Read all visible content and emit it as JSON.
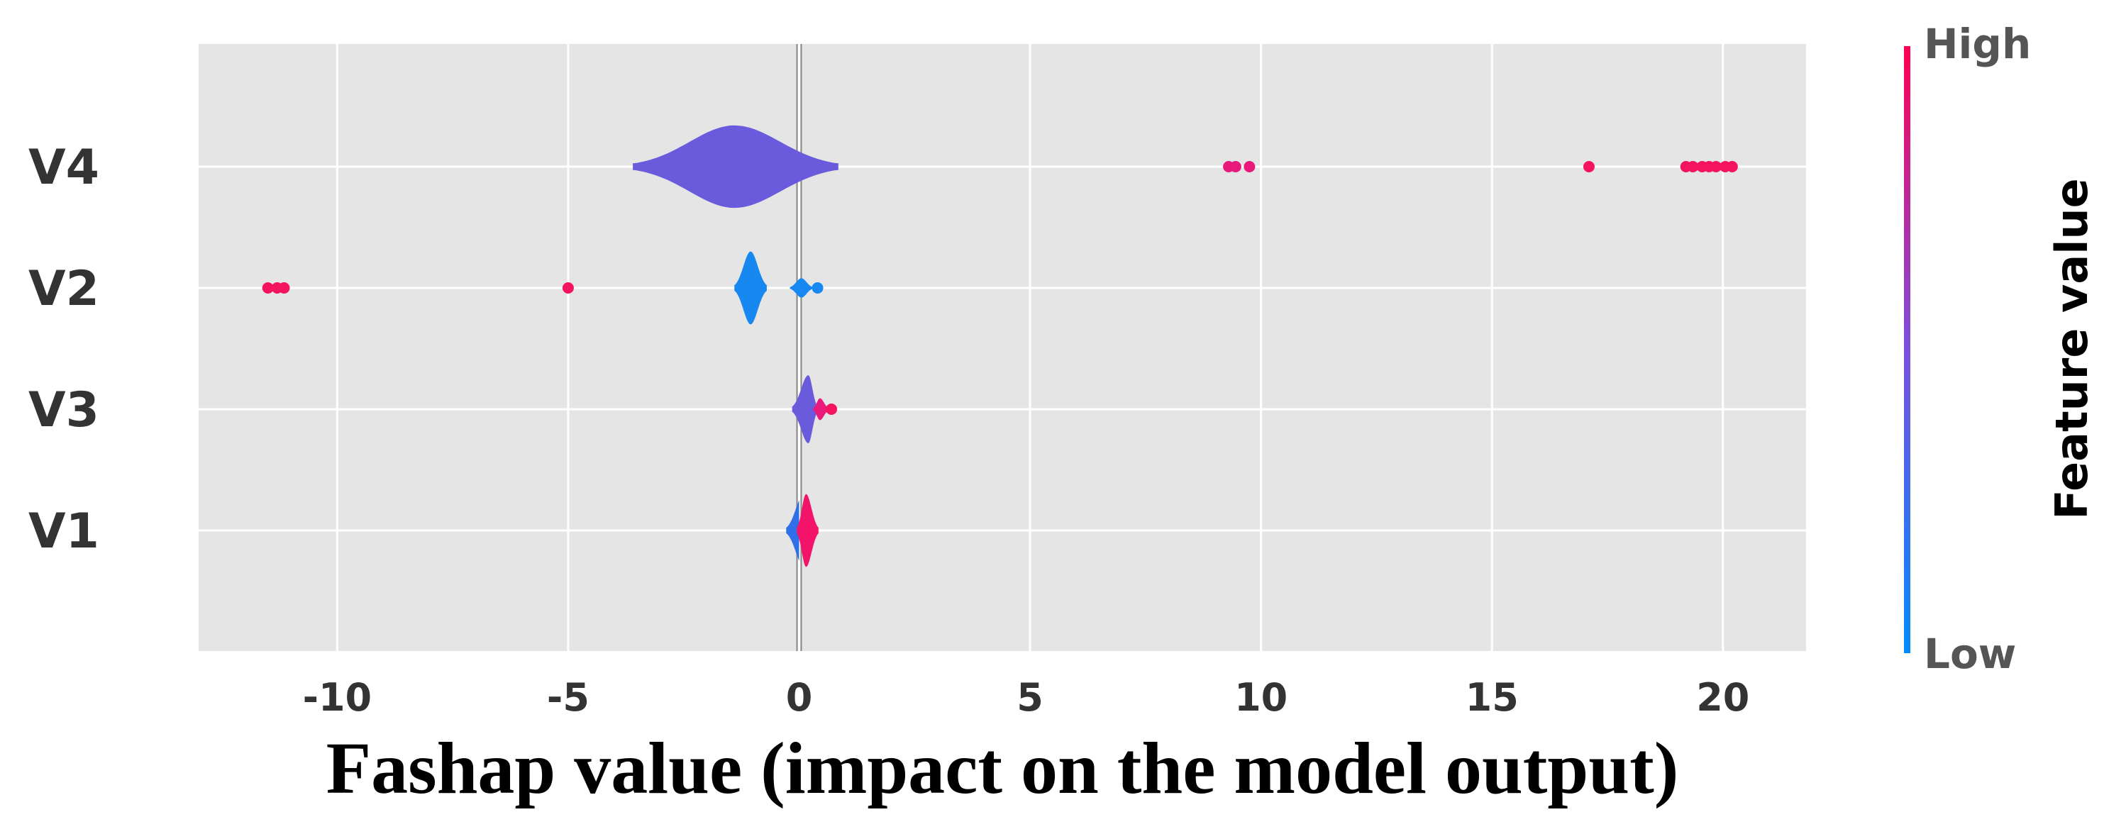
{
  "chart_data": {
    "type": "violin",
    "title": "",
    "xlabel": "Fashap value (impact on the model output)",
    "ylabel": "",
    "xlim": [
      -13,
      21.8
    ],
    "xticks": [
      -10,
      -5,
      0,
      5,
      10,
      15,
      20
    ],
    "xtick_labels": [
      "-10",
      "-5",
      "0",
      "5",
      "10",
      "15",
      "20"
    ],
    "grid": true,
    "background": "#e5e5e5",
    "categories": [
      "V4",
      "V2",
      "V3",
      "V1"
    ],
    "series": [
      {
        "feature": "V4",
        "violins": [
          {
            "center": -1.4,
            "min": -3.6,
            "max": 0.85,
            "half_width": 0.34,
            "color": "#6a5bdc"
          }
        ],
        "points": [
          {
            "x": 9.3,
            "color": "#e8197b"
          },
          {
            "x": 9.45,
            "color": "#e8197b"
          },
          {
            "x": 9.75,
            "color": "#e8197b"
          },
          {
            "x": 17.1,
            "color": "#f3135e"
          },
          {
            "x": 19.2,
            "color": "#f3135e"
          },
          {
            "x": 19.35,
            "color": "#f3135e"
          },
          {
            "x": 19.55,
            "color": "#f3135e"
          },
          {
            "x": 19.7,
            "color": "#f3135e"
          },
          {
            "x": 19.85,
            "color": "#f3135e"
          },
          {
            "x": 20.05,
            "color": "#f3135e"
          },
          {
            "x": 20.2,
            "color": "#f3135e"
          }
        ]
      },
      {
        "feature": "V2",
        "violins": [
          {
            "center": -1.05,
            "min": -1.4,
            "max": -0.7,
            "half_width": 0.3,
            "color": "#1688f0"
          },
          {
            "center": 0.05,
            "min": -0.2,
            "max": 0.3,
            "half_width": 0.08,
            "color": "#1688f0"
          }
        ],
        "points": [
          {
            "x": -11.5,
            "color": "#f3135e"
          },
          {
            "x": -11.3,
            "color": "#f3135e"
          },
          {
            "x": -11.15,
            "color": "#f3135e"
          },
          {
            "x": -5.0,
            "color": "#f3135e"
          },
          {
            "x": 0.4,
            "color": "#1688f0"
          }
        ]
      },
      {
        "feature": "V3",
        "violins": [
          {
            "center": 0.2,
            "min": -0.15,
            "max": 0.4,
            "half_width": 0.28,
            "color": "#6a5bdc"
          },
          {
            "center": 0.45,
            "min": 0.3,
            "max": 0.65,
            "half_width": 0.09,
            "color": "#e8197b"
          }
        ],
        "points": [
          {
            "x": 0.7,
            "color": "#f3135e"
          }
        ]
      },
      {
        "feature": "V1",
        "violins": [
          {
            "center": 0.1,
            "min": -0.28,
            "max": 0.0,
            "half_width": 0.3,
            "color": "#2f6fe8"
          },
          {
            "center": 0.15,
            "min": -0.05,
            "max": 0.42,
            "half_width": 0.3,
            "color": "#f3136a"
          }
        ],
        "points": []
      }
    ],
    "colorbar": {
      "title": "Feature value",
      "high_label": "High",
      "low_label": "Low",
      "high_color": "#ff0051",
      "mid_color": "#7b4fe0",
      "low_color": "#008bfb"
    }
  }
}
